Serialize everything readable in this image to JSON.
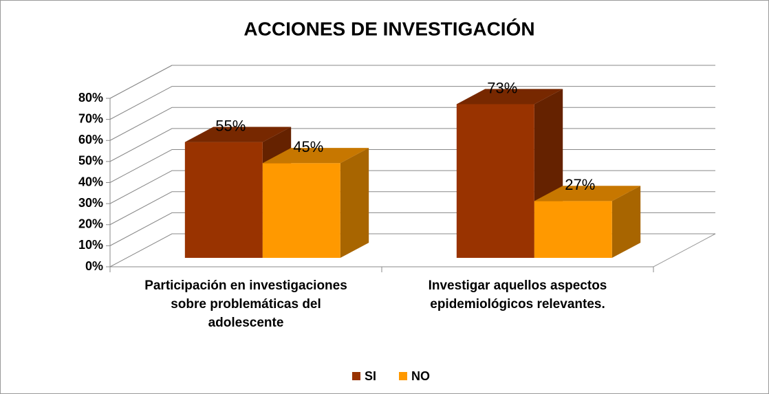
{
  "chart_data": {
    "type": "bar3d",
    "title": "ACCIONES DE INVESTIGACIÓN",
    "categories": [
      "Participación en investigaciones sobre problemáticas del adolescente",
      "Investigar aquellos aspectos epidemiológicos relevantes."
    ],
    "series": [
      {
        "name": "SI",
        "color": "#993300",
        "values": [
          55,
          73
        ],
        "value_labels": [
          "55%",
          "73%"
        ]
      },
      {
        "name": "NO",
        "color": "#FF9900",
        "values": [
          45,
          27
        ],
        "value_labels": [
          "45%",
          "27%"
        ]
      }
    ],
    "ylim": [
      0,
      80
    ],
    "yticks": [
      {
        "value": 0,
        "label": "0%"
      },
      {
        "value": 10,
        "label": "10%"
      },
      {
        "value": 20,
        "label": "20%"
      },
      {
        "value": 30,
        "label": "30%"
      },
      {
        "value": 40,
        "label": "40%"
      },
      {
        "value": 50,
        "label": "50%"
      },
      {
        "value": 60,
        "label": "60%"
      },
      {
        "value": 70,
        "label": "70%"
      },
      {
        "value": 80,
        "label": "80%"
      }
    ],
    "grid": true,
    "legend": "bottom"
  }
}
